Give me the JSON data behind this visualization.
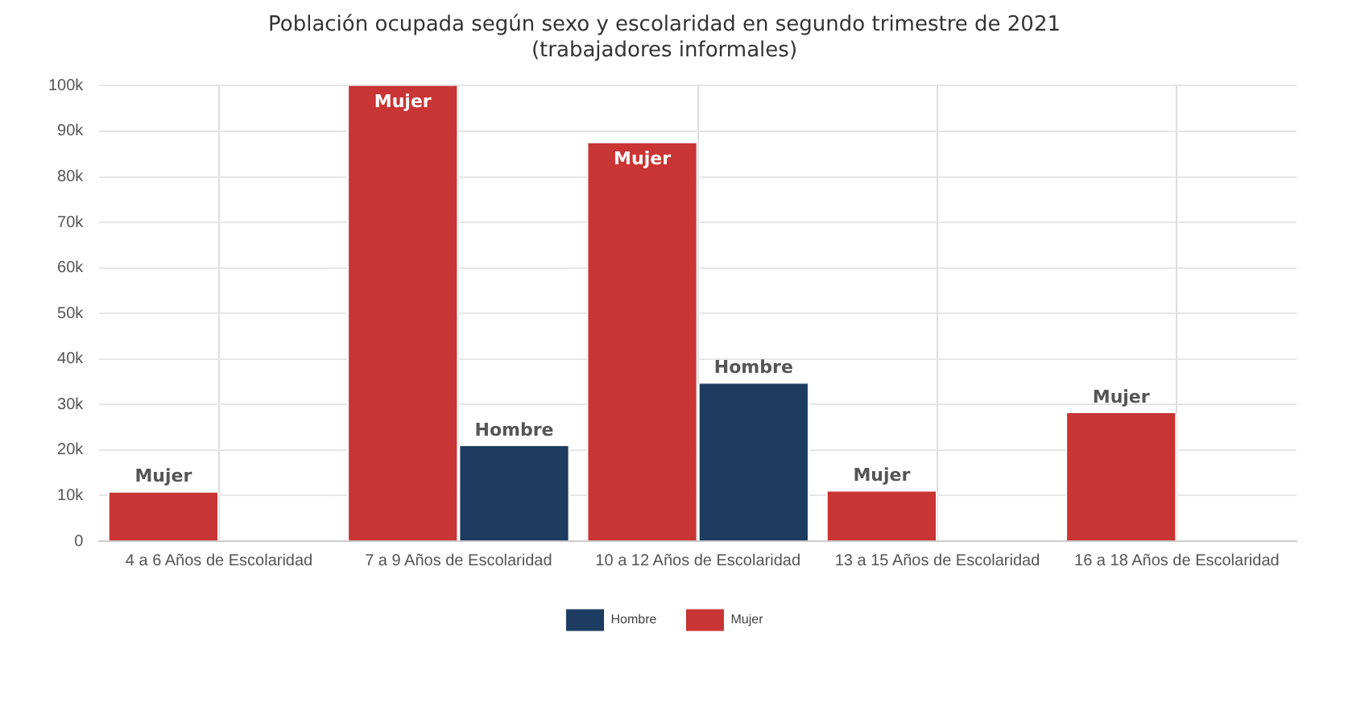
{
  "chart_data": {
    "type": "bar",
    "title": "Población ocupada según sexo y escolaridad en segundo trimestre de 2021\n(trabajadores informales)",
    "categories": [
      "4 a 6 Años de Escolaridad",
      "7 a 9 Años de Escolaridad",
      "10 a 12 Años de Escolaridad",
      "13 a 15 Años de Escolaridad",
      "16 a 18 Años de Escolaridad"
    ],
    "series": [
      {
        "name": "Mujer",
        "color": "#c93434",
        "values": [
          10700,
          100000,
          87400,
          10900,
          28100
        ],
        "value_labels": [
          "Mujer",
          "Mujer",
          "Mujer",
          "Mujer",
          "Mujer"
        ]
      },
      {
        "name": "Hombre",
        "color": "#1d3c5f",
        "values": [
          null,
          20900,
          34600,
          null,
          null
        ],
        "value_labels": [
          null,
          "Hombre",
          "Hombre",
          null,
          null
        ]
      }
    ],
    "ylim": [
      0,
      100000
    ],
    "yticks": [
      {
        "value": 0,
        "label": "0"
      },
      {
        "value": 10000,
        "label": "10k"
      },
      {
        "value": 20000,
        "label": "20k"
      },
      {
        "value": 30000,
        "label": "30k"
      },
      {
        "value": 40000,
        "label": "40k"
      },
      {
        "value": 50000,
        "label": "50k"
      },
      {
        "value": 60000,
        "label": "60k"
      },
      {
        "value": 70000,
        "label": "70k"
      },
      {
        "value": 80000,
        "label": "80k"
      },
      {
        "value": 90000,
        "label": "90k"
      },
      {
        "value": 100000,
        "label": "100k"
      }
    ],
    "grid": true,
    "legend": "bottom"
  }
}
